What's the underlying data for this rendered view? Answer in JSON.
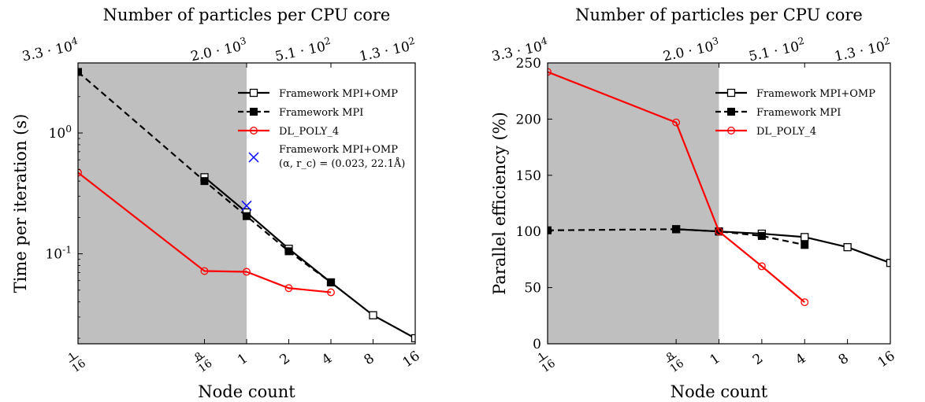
{
  "chart_data": [
    {
      "type": "line",
      "xscale": "log2",
      "yscale": "log10",
      "xlim": [
        0.0625,
        16
      ],
      "ylim": [
        0.018,
        3.8
      ],
      "xlabel": "Node count",
      "ylabel": "Time per iteration (s)",
      "x2label": "Number of particles per CPU core",
      "x_ticks": [
        {
          "value": 0.0625,
          "label": "1/16"
        },
        {
          "value": 0.5,
          "label": "8/16"
        },
        {
          "value": 1,
          "label": "1"
        },
        {
          "value": 2,
          "label": "2"
        },
        {
          "value": 4,
          "label": "4"
        },
        {
          "value": 8,
          "label": "8"
        },
        {
          "value": 16,
          "label": "16"
        }
      ],
      "x2_ticks": [
        {
          "value": 0.0625,
          "label": "3.3 · 10^4"
        },
        {
          "value": 1,
          "label": "2.0 · 10^3"
        },
        {
          "value": 4,
          "label": "5.1 · 10^2"
        },
        {
          "value": 16,
          "label": "1.3 · 10^2"
        }
      ],
      "y_ticks": [
        {
          "value": 1,
          "label": "10^0"
        },
        {
          "value": 0.1,
          "label": "10^-1"
        }
      ],
      "shaded_region": {
        "x": [
          0.0625,
          1
        ],
        "color": "#bfbfbf"
      },
      "grid": false,
      "legend_position": "upper-right",
      "series": [
        {
          "name": "Framework MPI+OMP",
          "style": "solid",
          "marker": "open-square",
          "color": "#000000",
          "x": [
            0.5,
            1,
            2,
            4,
            8,
            16
          ],
          "y": [
            0.43,
            0.22,
            0.11,
            0.058,
            0.031,
            0.02
          ]
        },
        {
          "name": "Framework MPI",
          "style": "dashed",
          "marker": "filled-square",
          "color": "#000000",
          "x": [
            0.0625,
            0.5,
            1,
            2,
            4
          ],
          "y": [
            3.2,
            0.4,
            0.205,
            0.105,
            0.058
          ]
        },
        {
          "name": "DL_POLY_4",
          "style": "solid",
          "marker": "open-circle",
          "color": "#ff0000",
          "x": [
            0.0625,
            0.5,
            1,
            2,
            4
          ],
          "y": [
            0.47,
            0.072,
            0.071,
            0.052,
            0.048
          ]
        },
        {
          "name": "Framework MPI+OMP",
          "name_line2": "(α, r_c) = (0.023, 22.1Å)",
          "style": "none",
          "marker": "x",
          "color": "#0000ff",
          "x": [
            1
          ],
          "y": [
            0.25
          ]
        }
      ]
    },
    {
      "type": "line",
      "xscale": "log2",
      "yscale": "linear",
      "xlim": [
        0.0625,
        16
      ],
      "ylim": [
        0,
        250
      ],
      "xlabel": "Node count",
      "ylabel": "Parallel efficiency (%)",
      "x2label": "Number of particles per CPU core",
      "x_ticks": [
        {
          "value": 0.0625,
          "label": "1/16"
        },
        {
          "value": 0.5,
          "label": "8/16"
        },
        {
          "value": 1,
          "label": "1"
        },
        {
          "value": 2,
          "label": "2"
        },
        {
          "value": 4,
          "label": "4"
        },
        {
          "value": 8,
          "label": "8"
        },
        {
          "value": 16,
          "label": "16"
        }
      ],
      "x2_ticks": [
        {
          "value": 0.0625,
          "label": "3.3 · 10^4"
        },
        {
          "value": 1,
          "label": "2.0 · 10^3"
        },
        {
          "value": 4,
          "label": "5.1 · 10^2"
        },
        {
          "value": 16,
          "label": "1.3 · 10^2"
        }
      ],
      "y_ticks": [
        {
          "value": 0,
          "label": "0"
        },
        {
          "value": 50,
          "label": "50"
        },
        {
          "value": 100,
          "label": "100"
        },
        {
          "value": 150,
          "label": "150"
        },
        {
          "value": 200,
          "label": "200"
        },
        {
          "value": 250,
          "label": "250"
        }
      ],
      "shaded_region": {
        "x": [
          0.0625,
          1
        ],
        "color": "#bfbfbf"
      },
      "grid": false,
      "legend_position": "upper-right",
      "series": [
        {
          "name": "Framework MPI+OMP",
          "style": "solid",
          "marker": "open-square",
          "color": "#000000",
          "x": [
            0.5,
            1,
            2,
            4,
            8,
            16
          ],
          "y": [
            102,
            100,
            98,
            95,
            86,
            72
          ]
        },
        {
          "name": "Framework MPI",
          "style": "dashed",
          "marker": "filled-square",
          "color": "#000000",
          "x": [
            0.0625,
            0.5,
            1,
            2,
            4
          ],
          "y": [
            101,
            102,
            100,
            96,
            88
          ]
        },
        {
          "name": "DL_POLY_4",
          "style": "solid",
          "marker": "open-circle",
          "color": "#ff0000",
          "x": [
            0.0625,
            0.5,
            1,
            2,
            4
          ],
          "y": [
            242,
            197,
            100,
            69,
            37
          ]
        }
      ]
    }
  ]
}
